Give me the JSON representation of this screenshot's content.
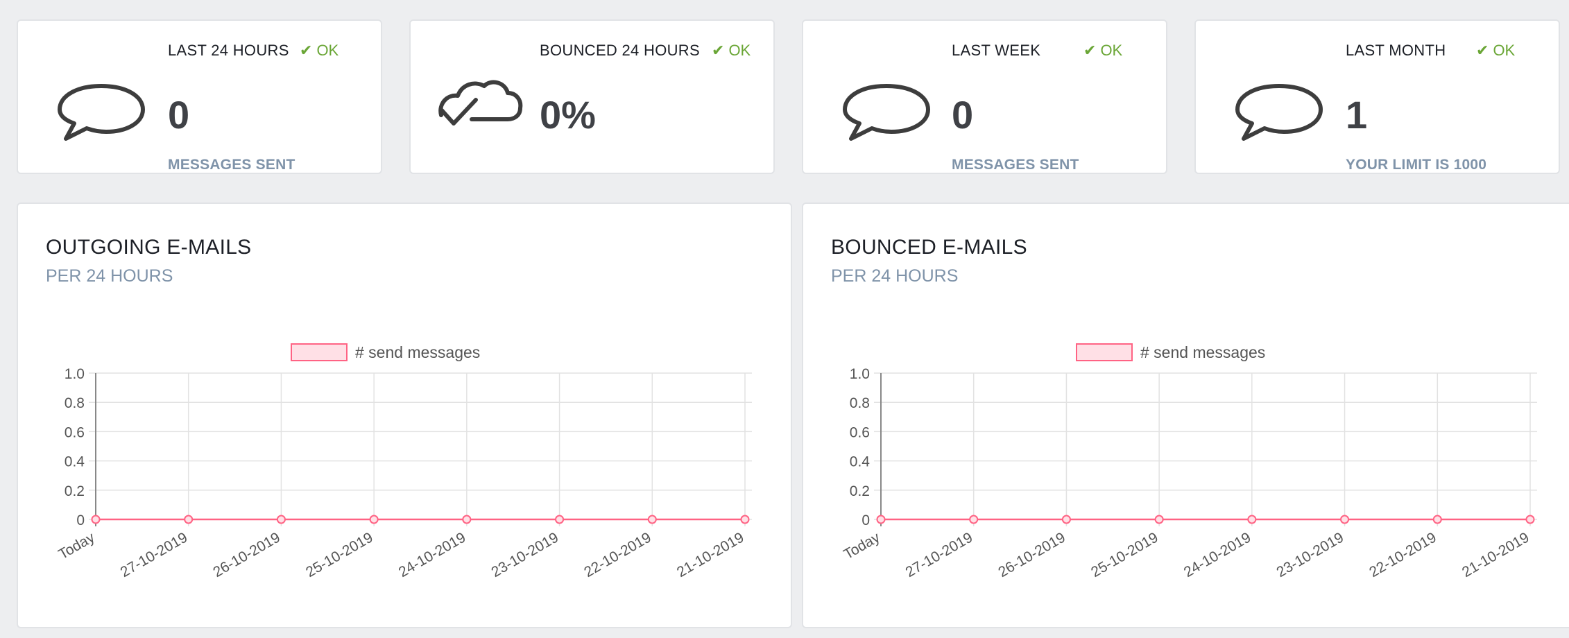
{
  "stats": [
    {
      "label": "LAST 24 HOURS",
      "status": "OK",
      "value": "0",
      "sub": "MESSAGES SENT",
      "icon": "speech-bubble-icon"
    },
    {
      "label": "BOUNCED 24 HOURS",
      "status": "OK",
      "value": "0%",
      "sub": "",
      "icon": "cloud-check-icon"
    },
    {
      "label": "LAST WEEK",
      "status": "OK",
      "value": "0",
      "sub": "MESSAGES SENT",
      "icon": "speech-bubble-icon"
    },
    {
      "label": "LAST MONTH",
      "status": "OK",
      "value": "1",
      "sub": "YOUR LIMIT IS 1000",
      "icon": "speech-bubble-icon"
    }
  ],
  "panels": [
    {
      "title": "OUTGOING E-MAILS",
      "subtitle": "PER 24 HOURS"
    },
    {
      "title": "BOUNCED E-MAILS",
      "subtitle": "PER 24 HOURS"
    }
  ],
  "colors": {
    "ok": "#6aa636",
    "series_line": "#ff6384",
    "series_fill": "#ffe0e6",
    "muted": "#7f93a9"
  },
  "chart_data": [
    {
      "type": "line",
      "title": "",
      "xlabel": "",
      "ylabel": "",
      "categories": [
        "Today",
        "27-10-2019",
        "26-10-2019",
        "25-10-2019",
        "24-10-2019",
        "23-10-2019",
        "22-10-2019",
        "21-10-2019"
      ],
      "series": [
        {
          "name": "# send messages",
          "values": [
            0,
            0,
            0,
            0,
            0,
            0,
            0,
            0
          ]
        }
      ],
      "ylim": [
        0,
        1.0
      ],
      "yticks": [
        "1.0",
        "0.8",
        "0.6",
        "0.4",
        "0.2",
        "0"
      ],
      "grid": true,
      "legend": "top-center"
    },
    {
      "type": "line",
      "title": "",
      "xlabel": "",
      "ylabel": "",
      "categories": [
        "Today",
        "27-10-2019",
        "26-10-2019",
        "25-10-2019",
        "24-10-2019",
        "23-10-2019",
        "22-10-2019",
        "21-10-2019"
      ],
      "series": [
        {
          "name": "# send messages",
          "values": [
            0,
            0,
            0,
            0,
            0,
            0,
            0,
            0
          ]
        }
      ],
      "ylim": [
        0,
        1.0
      ],
      "yticks": [
        "1.0",
        "0.8",
        "0.6",
        "0.4",
        "0.2",
        "0"
      ],
      "grid": true,
      "legend": "top-center"
    }
  ]
}
